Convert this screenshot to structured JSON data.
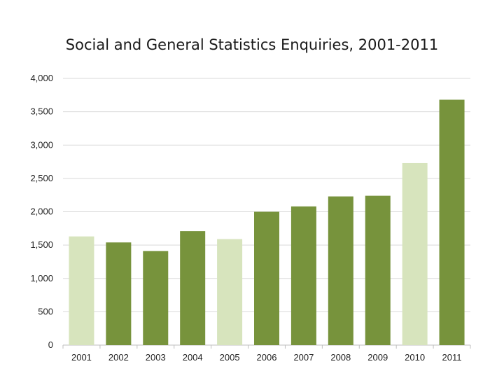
{
  "chart_data": {
    "type": "bar",
    "title": "Social and General Statistics Enquiries, 2001-2011",
    "xlabel": "",
    "ylabel": "",
    "categories": [
      "2001",
      "2002",
      "2003",
      "2004",
      "2005",
      "2006",
      "2007",
      "2008",
      "2009",
      "2010",
      "2011"
    ],
    "values": [
      1630,
      1540,
      1410,
      1710,
      1590,
      2000,
      2080,
      2230,
      2240,
      2730,
      3680
    ],
    "highlight": [
      true,
      false,
      false,
      false,
      true,
      false,
      false,
      false,
      false,
      true,
      false
    ],
    "ylim": [
      0,
      4000
    ],
    "yticks": [
      0,
      500,
      1000,
      1500,
      2000,
      2500,
      3000,
      3500,
      4000
    ],
    "ytick_labels": [
      "0",
      "500",
      "1,000",
      "1,500",
      "2,000",
      "2,500",
      "3,000",
      "3,500",
      "4,000"
    ],
    "grid": true,
    "legend": "none",
    "colors": {
      "dark": "#77933c",
      "light": "#d7e4bd",
      "grid": "#d9d9d9",
      "axis": "#bfbfbf"
    }
  }
}
